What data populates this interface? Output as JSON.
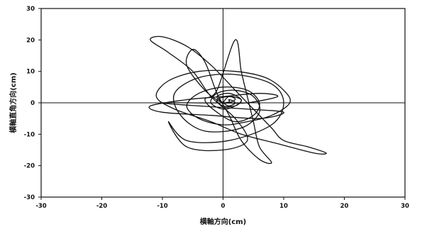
{
  "chart_data": {
    "type": "line",
    "title": "",
    "xlabel": "横軸方向(cm)",
    "ylabel": "横軸直角方向(cm)",
    "xlim": [
      -30,
      30
    ],
    "ylim": [
      -30,
      30
    ],
    "x_ticks": [
      -30,
      -20,
      -10,
      0,
      10,
      20,
      30
    ],
    "y_ticks": [
      -30,
      -20,
      -10,
      0,
      10,
      20,
      30
    ],
    "grid": false,
    "legend": "none",
    "line_color": "#111111",
    "series": [
      {
        "values": [
          [
            0,
            0
          ],
          [
            1,
            2
          ],
          [
            3,
            1
          ],
          [
            2,
            -1
          ],
          [
            0,
            -2
          ],
          [
            -2,
            0
          ],
          [
            -1,
            3
          ],
          [
            2,
            4
          ],
          [
            5,
            2
          ],
          [
            6,
            -3
          ],
          [
            3,
            -8
          ],
          [
            -3,
            -9
          ],
          [
            -7,
            -4
          ],
          [
            -8,
            3
          ],
          [
            -4,
            8
          ],
          [
            2,
            9
          ],
          [
            8,
            6
          ],
          [
            10,
            0
          ],
          [
            8,
            -7
          ],
          [
            1,
            -12
          ],
          [
            -6,
            -12
          ],
          [
            -9,
            -6
          ],
          [
            -6,
            -14
          ],
          [
            0,
            -15
          ],
          [
            4,
            -12
          ],
          [
            2,
            -5
          ],
          [
            -2,
            2
          ],
          [
            -5,
            10
          ],
          [
            -9,
            16
          ],
          [
            -12,
            20
          ],
          [
            -10,
            21
          ],
          [
            -6,
            18
          ],
          [
            -2,
            12
          ],
          [
            2,
            4
          ],
          [
            5,
            -2
          ],
          [
            8,
            -8
          ],
          [
            10,
            -12
          ],
          [
            14,
            -14
          ],
          [
            17,
            -16
          ],
          [
            15,
            -16
          ],
          [
            9,
            -13
          ],
          [
            3,
            -10
          ],
          [
            -2,
            -6
          ],
          [
            -8,
            -2
          ],
          [
            -11,
            2
          ],
          [
            -9,
            7
          ],
          [
            -4,
            10
          ],
          [
            2,
            10
          ],
          [
            7,
            8
          ],
          [
            10,
            4
          ],
          [
            11,
            0
          ],
          [
            8,
            -4
          ],
          [
            4,
            -6
          ],
          [
            0,
            -7
          ],
          [
            -4,
            -5
          ],
          [
            -6,
            -1
          ],
          [
            -4,
            3
          ],
          [
            0,
            5
          ],
          [
            4,
            4
          ],
          [
            6,
            0
          ],
          [
            5,
            -4
          ],
          [
            2,
            -6
          ],
          [
            -1,
            -3
          ],
          [
            -3,
            1
          ],
          [
            -1,
            4
          ],
          [
            2,
            20
          ],
          [
            3,
            10
          ],
          [
            4,
            2
          ],
          [
            5,
            -6
          ],
          [
            6,
            -14
          ],
          [
            8,
            -19
          ],
          [
            6,
            -18
          ],
          [
            3,
            -12
          ],
          [
            1,
            -4
          ],
          [
            -1,
            3
          ],
          [
            -3,
            13
          ],
          [
            -5,
            17
          ],
          [
            -6,
            12
          ],
          [
            -3,
            4
          ],
          [
            0,
            0
          ],
          [
            2,
            1
          ],
          [
            1,
            2
          ],
          [
            -1,
            1
          ],
          [
            0,
            -1
          ],
          [
            2,
            -1
          ],
          [
            3,
            1
          ],
          [
            1,
            3
          ],
          [
            -1,
            2
          ],
          [
            0,
            0
          ],
          [
            1,
            -1
          ],
          [
            2,
            0
          ],
          [
            1,
            1
          ],
          [
            0,
            0
          ],
          [
            -10,
            0
          ],
          [
            -4,
            -1
          ],
          [
            4,
            -2
          ],
          [
            10,
            -3
          ],
          [
            6,
            -5
          ],
          [
            -2,
            -4
          ],
          [
            -10,
            -3
          ],
          [
            -12,
            -1
          ],
          [
            -6,
            1
          ],
          [
            0,
            2
          ],
          [
            6,
            3
          ],
          [
            9,
            2
          ],
          [
            4,
            0
          ],
          [
            0,
            0
          ]
        ]
      }
    ]
  }
}
